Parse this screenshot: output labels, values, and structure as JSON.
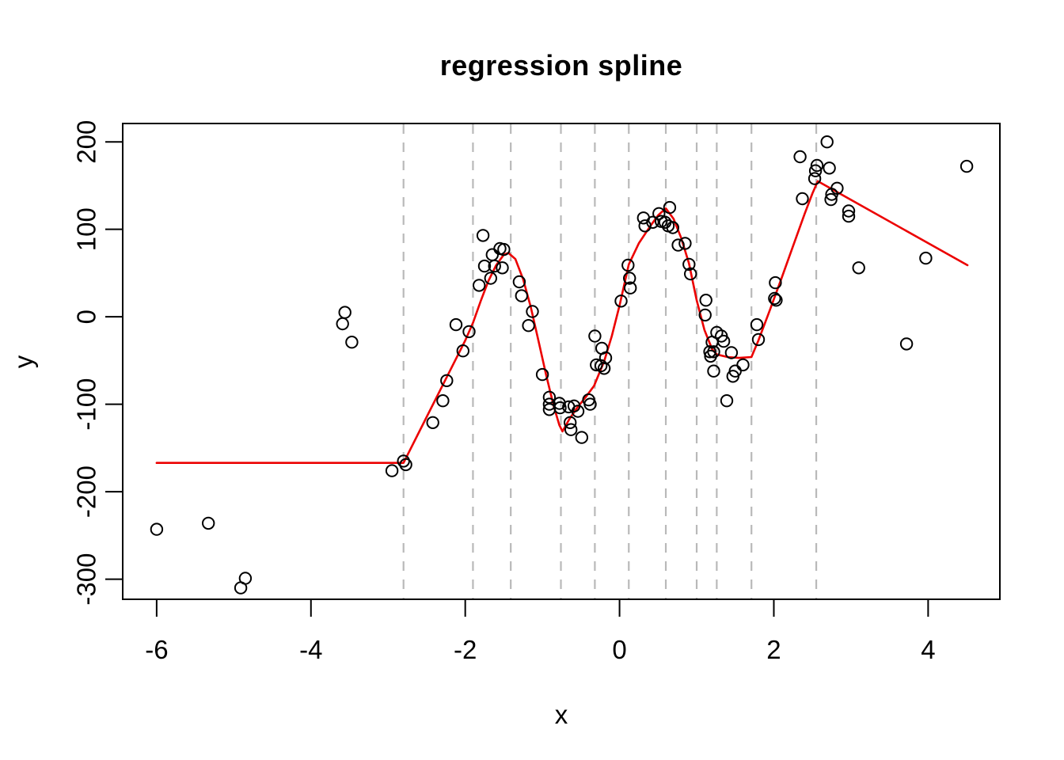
{
  "figure": {
    "title": "regression spline",
    "xlabel": "x",
    "ylabel": "y"
  },
  "colors": {
    "curve": "#ec0000",
    "knot_line": "#b9b9b9",
    "point_stroke": "#000000",
    "axis": "#000000",
    "background": "#ffffff"
  },
  "chart_data": {
    "type": "scatter",
    "title": "regression spline",
    "xlabel": "x",
    "ylabel": "y",
    "xlim": [
      -6.44,
      4.93
    ],
    "ylim": [
      -323,
      221
    ],
    "x_ticks": [
      -6,
      -4,
      -2,
      0,
      2,
      4
    ],
    "y_ticks": [
      -300,
      -200,
      -100,
      0,
      100,
      200
    ],
    "grid": false,
    "legend": null,
    "knot_lines_x": [
      -2.8,
      -1.9,
      -1.41,
      -0.76,
      -0.32,
      0.12,
      0.6,
      1.0,
      1.26,
      1.71,
      2.55
    ],
    "points": [
      [
        -6.0,
        -243
      ],
      [
        -5.33,
        -236
      ],
      [
        -4.91,
        -310
      ],
      [
        -4.85,
        -299
      ],
      [
        -3.59,
        -8
      ],
      [
        -3.56,
        5
      ],
      [
        -3.47,
        -29
      ],
      [
        -2.95,
        -176
      ],
      [
        -2.8,
        -165
      ],
      [
        -2.77,
        -169
      ],
      [
        -2.42,
        -121
      ],
      [
        -2.29,
        -96
      ],
      [
        -2.24,
        -73
      ],
      [
        -2.12,
        -9
      ],
      [
        -2.03,
        -39
      ],
      [
        -1.95,
        -17
      ],
      [
        -1.82,
        36
      ],
      [
        -1.77,
        93
      ],
      [
        -1.75,
        58
      ],
      [
        -1.67,
        44
      ],
      [
        -1.65,
        71
      ],
      [
        -1.62,
        58
      ],
      [
        -1.55,
        78
      ],
      [
        -1.52,
        56
      ],
      [
        -1.5,
        77
      ],
      [
        -1.3,
        40
      ],
      [
        -1.27,
        24
      ],
      [
        -1.18,
        -10
      ],
      [
        -1.13,
        6
      ],
      [
        -1.0,
        -66
      ],
      [
        -0.91,
        -92
      ],
      [
        -0.91,
        -100
      ],
      [
        -0.91,
        -106
      ],
      [
        -0.78,
        -99
      ],
      [
        -0.77,
        -104
      ],
      [
        -0.66,
        -103
      ],
      [
        -0.64,
        -121
      ],
      [
        -0.63,
        -129
      ],
      [
        -0.59,
        -102
      ],
      [
        -0.54,
        -108
      ],
      [
        -0.49,
        -138
      ],
      [
        -0.4,
        -95
      ],
      [
        -0.38,
        -100
      ],
      [
        -0.32,
        -22
      ],
      [
        -0.3,
        -55
      ],
      [
        -0.24,
        -56
      ],
      [
        -0.23,
        -36
      ],
      [
        -0.2,
        -59
      ],
      [
        -0.18,
        -47
      ],
      [
        0.02,
        18
      ],
      [
        0.11,
        59
      ],
      [
        0.13,
        44
      ],
      [
        0.14,
        33
      ],
      [
        0.31,
        113
      ],
      [
        0.33,
        104
      ],
      [
        0.43,
        108
      ],
      [
        0.51,
        118
      ],
      [
        0.54,
        109
      ],
      [
        0.59,
        108
      ],
      [
        0.63,
        104
      ],
      [
        0.65,
        125
      ],
      [
        0.69,
        102
      ],
      [
        0.76,
        82
      ],
      [
        0.85,
        84
      ],
      [
        0.9,
        60
      ],
      [
        0.92,
        49
      ],
      [
        1.11,
        2
      ],
      [
        1.12,
        19
      ],
      [
        1.17,
        -40
      ],
      [
        1.18,
        -45
      ],
      [
        1.2,
        -29
      ],
      [
        1.22,
        -40
      ],
      [
        1.22,
        -62
      ],
      [
        1.26,
        -18
      ],
      [
        1.32,
        -22
      ],
      [
        1.35,
        -28
      ],
      [
        1.39,
        -96
      ],
      [
        1.45,
        -41
      ],
      [
        1.47,
        -68
      ],
      [
        1.5,
        -62
      ],
      [
        1.6,
        -55
      ],
      [
        1.78,
        -9
      ],
      [
        1.8,
        -26
      ],
      [
        2.01,
        21
      ],
      [
        2.02,
        39
      ],
      [
        2.03,
        19
      ],
      [
        2.34,
        183
      ],
      [
        2.37,
        135
      ],
      [
        2.53,
        158
      ],
      [
        2.54,
        167
      ],
      [
        2.56,
        173
      ],
      [
        2.69,
        200
      ],
      [
        2.72,
        170
      ],
      [
        2.74,
        134
      ],
      [
        2.75,
        140
      ],
      [
        2.82,
        147
      ],
      [
        2.97,
        121
      ],
      [
        2.97,
        115
      ],
      [
        3.1,
        56
      ],
      [
        3.72,
        -31
      ],
      [
        3.97,
        67
      ],
      [
        4.5,
        172
      ]
    ],
    "spline_curve": [
      [
        -6.0,
        -167
      ],
      [
        -2.8,
        -167
      ],
      [
        -2.6,
        -132
      ],
      [
        -2.4,
        -97
      ],
      [
        -2.2,
        -62
      ],
      [
        -2.0,
        -27
      ],
      [
        -1.9,
        -7
      ],
      [
        -1.8,
        18
      ],
      [
        -1.7,
        41
      ],
      [
        -1.6,
        59
      ],
      [
        -1.5,
        71
      ],
      [
        -1.44,
        73
      ],
      [
        -1.35,
        66
      ],
      [
        -1.25,
        43
      ],
      [
        -1.15,
        11
      ],
      [
        -1.05,
        -28
      ],
      [
        -0.95,
        -67
      ],
      [
        -0.85,
        -103
      ],
      [
        -0.78,
        -124
      ],
      [
        -0.74,
        -131
      ],
      [
        -0.65,
        -117
      ],
      [
        -0.55,
        -104
      ],
      [
        -0.44,
        -92
      ],
      [
        -0.33,
        -79
      ],
      [
        -0.2,
        -51
      ],
      [
        -0.1,
        -22
      ],
      [
        0.0,
        13
      ],
      [
        0.12,
        60
      ],
      [
        0.25,
        84
      ],
      [
        0.4,
        104
      ],
      [
        0.5,
        116
      ],
      [
        0.6,
        124
      ],
      [
        0.7,
        112
      ],
      [
        0.8,
        90
      ],
      [
        0.9,
        61
      ],
      [
        1.0,
        19
      ],
      [
        1.1,
        -15
      ],
      [
        1.2,
        -37
      ],
      [
        1.26,
        -43
      ],
      [
        1.4,
        -46
      ],
      [
        1.55,
        -47
      ],
      [
        1.71,
        -46
      ],
      [
        1.8,
        -27
      ],
      [
        1.95,
        8
      ],
      [
        2.1,
        44
      ],
      [
        2.25,
        81
      ],
      [
        2.4,
        118
      ],
      [
        2.5,
        141
      ],
      [
        2.57,
        155
      ],
      [
        4.51,
        59
      ]
    ]
  }
}
